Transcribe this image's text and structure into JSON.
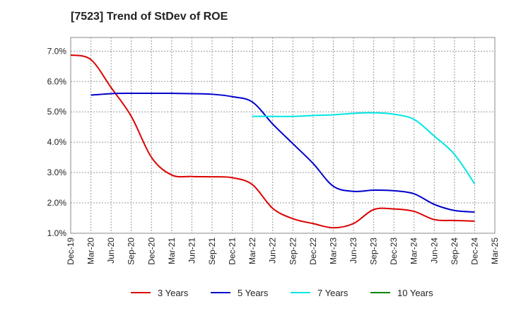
{
  "chart_data": {
    "type": "line",
    "title": "[7523]  Trend of StDev of ROE",
    "xlabel": "",
    "ylabel": "",
    "x": [
      "Dec-19",
      "Mar-20",
      "Jun-20",
      "Sep-20",
      "Dec-20",
      "Mar-21",
      "Jun-21",
      "Sep-21",
      "Dec-21",
      "Mar-22",
      "Jun-22",
      "Sep-22",
      "Dec-22",
      "Mar-23",
      "Jun-23",
      "Sep-23",
      "Dec-23",
      "Mar-24",
      "Jun-24",
      "Sep-24",
      "Dec-24",
      "Mar-25"
    ],
    "y_ticks": [
      "1.0%",
      "2.0%",
      "3.0%",
      "4.0%",
      "5.0%",
      "6.0%",
      "7.0%"
    ],
    "ylim": [
      1.0,
      7.0
    ],
    "grid": true,
    "legend_position": "bottom",
    "series": [
      {
        "name": "3 Years",
        "color": "#dd0000",
        "values": [
          6.87,
          6.72,
          5.8,
          4.85,
          3.5,
          2.92,
          2.87,
          2.86,
          2.83,
          2.6,
          1.82,
          1.48,
          1.32,
          1.18,
          1.32,
          1.78,
          1.8,
          1.72,
          1.45,
          1.42,
          1.4,
          null
        ]
      },
      {
        "name": "5 Years",
        "color": "#0000cc",
        "values": [
          null,
          5.55,
          5.6,
          5.61,
          5.61,
          5.61,
          5.6,
          5.58,
          5.5,
          5.32,
          4.6,
          3.95,
          3.3,
          2.55,
          2.38,
          2.42,
          2.4,
          2.3,
          1.95,
          1.75,
          1.7,
          null
        ]
      },
      {
        "name": "7 Years",
        "color": "#00e5e5",
        "values": [
          null,
          null,
          null,
          null,
          null,
          null,
          null,
          null,
          null,
          4.85,
          4.85,
          4.85,
          4.88,
          4.9,
          4.95,
          4.97,
          4.92,
          4.75,
          4.2,
          3.6,
          2.63,
          null
        ]
      },
      {
        "name": "10 Years",
        "color": "#008800",
        "values": [
          null,
          null,
          null,
          null,
          null,
          null,
          null,
          null,
          null,
          null,
          null,
          null,
          null,
          null,
          null,
          null,
          null,
          null,
          null,
          null,
          null,
          null
        ]
      }
    ]
  }
}
